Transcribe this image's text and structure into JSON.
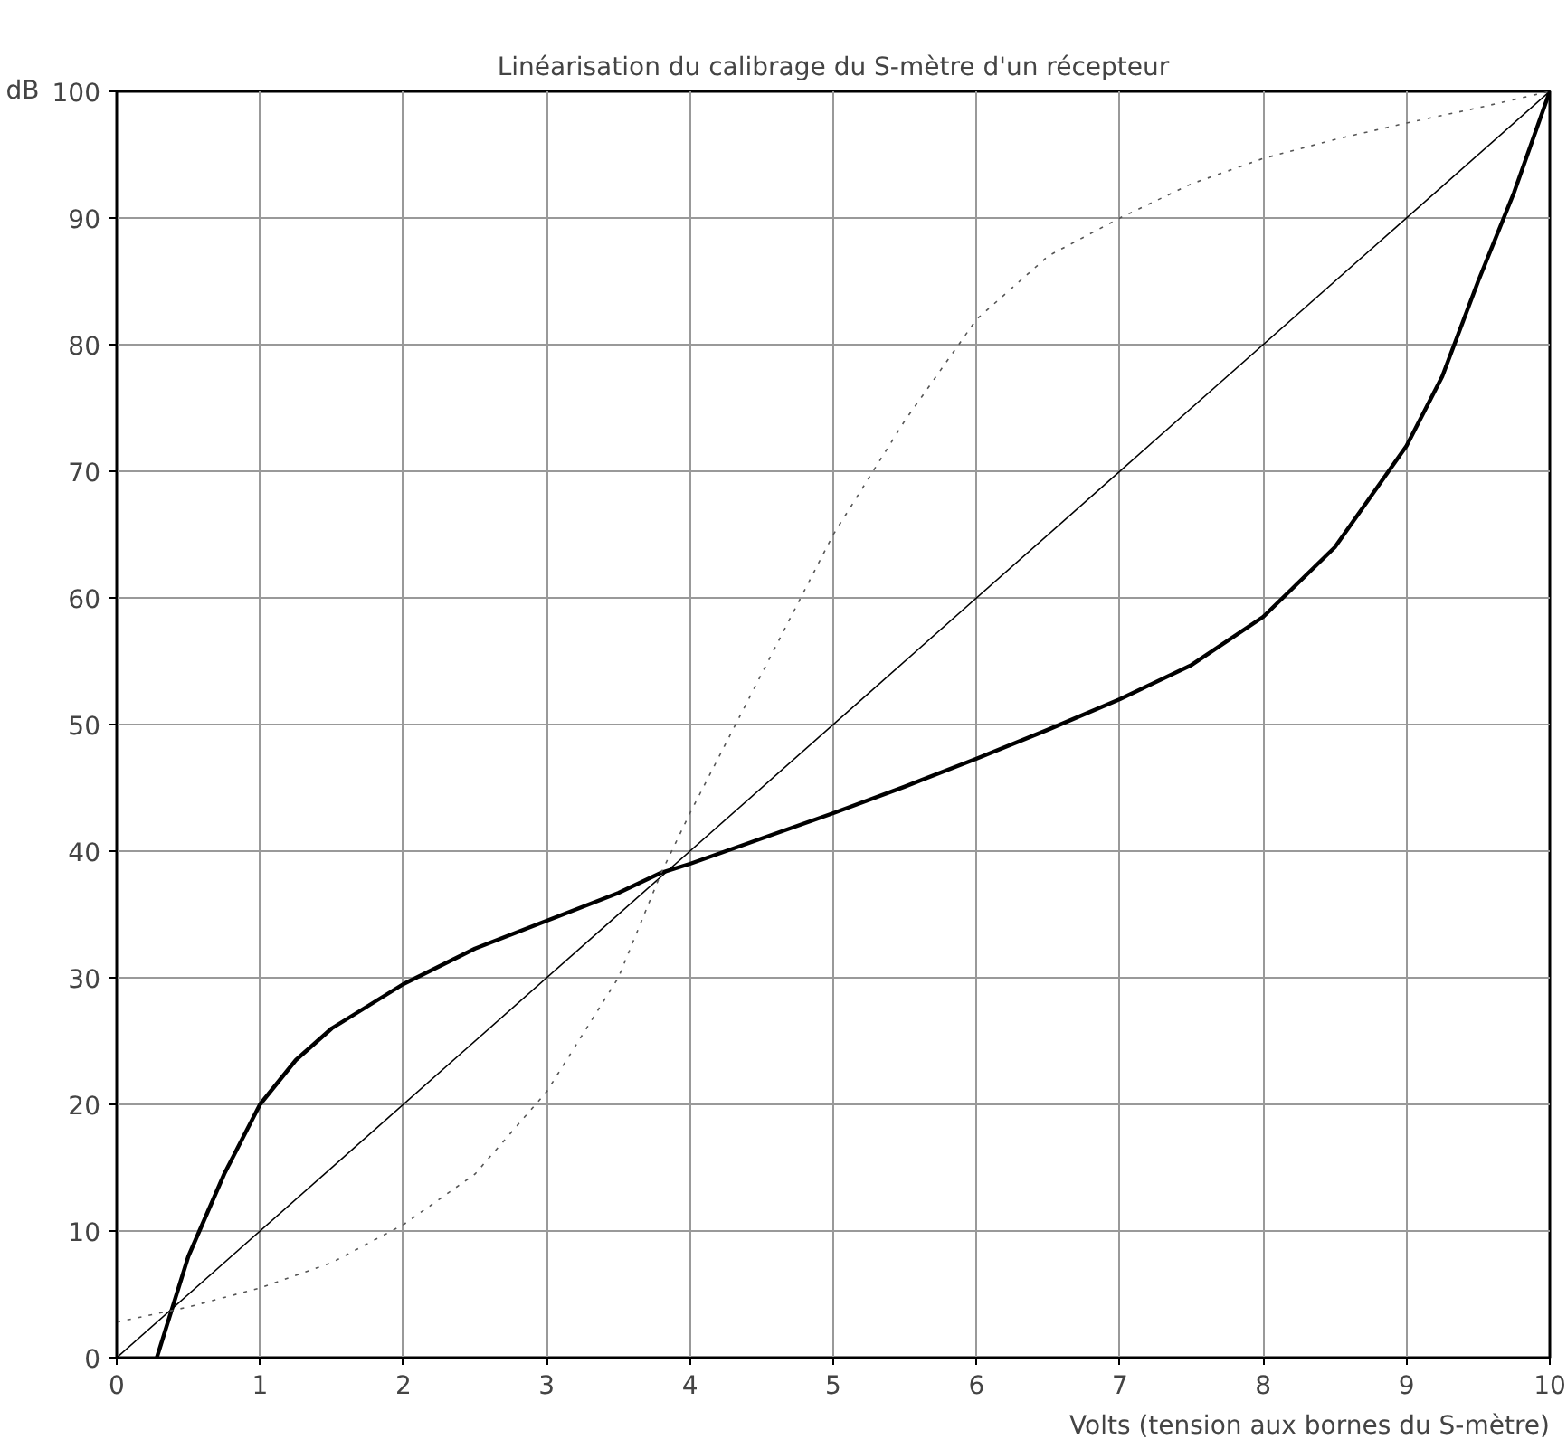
{
  "chart_data": {
    "type": "line",
    "title": "Linéarisation du calibrage du S-mètre d'un récepteur",
    "xlabel": "Volts (tension aux bornes du S-mètre)",
    "ylabel": "dB",
    "xlim": [
      0,
      10
    ],
    "ylim": [
      0,
      100
    ],
    "xticks": [
      0,
      1,
      2,
      3,
      4,
      5,
      6,
      7,
      8,
      9,
      10
    ],
    "yticks": [
      0,
      10,
      20,
      30,
      40,
      50,
      60,
      70,
      80,
      90,
      100
    ],
    "grid": true,
    "marker": "none",
    "series": [
      {
        "color": "#000000",
        "line_style": "solid",
        "x": [
          0.28,
          0.5,
          0.75,
          1,
          1.25,
          1.5,
          2,
          2.5,
          3,
          3.5,
          3.8,
          4,
          4.5,
          5,
          5.5,
          6,
          6.5,
          7,
          7.5,
          8,
          8.5,
          9,
          9.25,
          9.5,
          9.75,
          10
        ],
        "values": [
          0,
          8,
          14.5,
          20,
          23.5,
          26,
          29.5,
          32.3,
          34.5,
          36.7,
          38.3,
          39,
          41,
          43,
          45.1,
          47.3,
          49.6,
          52,
          54.7,
          58.5,
          64,
          72,
          77.5,
          85,
          92,
          100
        ]
      },
      {
        "color": "#000000",
        "line_style": "solid",
        "x": [
          0,
          10
        ],
        "values": [
          0,
          100
        ]
      },
      {
        "color": "#555555",
        "line_style": "dotted",
        "x": [
          0,
          0.5,
          1,
          1.5,
          2,
          2.5,
          3,
          3.5,
          3.8,
          4,
          4.5,
          5,
          5.5,
          6,
          6.5,
          7,
          7.5,
          8,
          8.5,
          9,
          9.5,
          10
        ],
        "values": [
          2.8,
          4,
          5.5,
          7.5,
          10.5,
          14.5,
          21,
          30,
          38.3,
          43,
          54,
          65,
          74,
          82,
          87,
          90,
          92.7,
          94.7,
          96.2,
          97.5,
          98.7,
          100
        ]
      }
    ]
  }
}
